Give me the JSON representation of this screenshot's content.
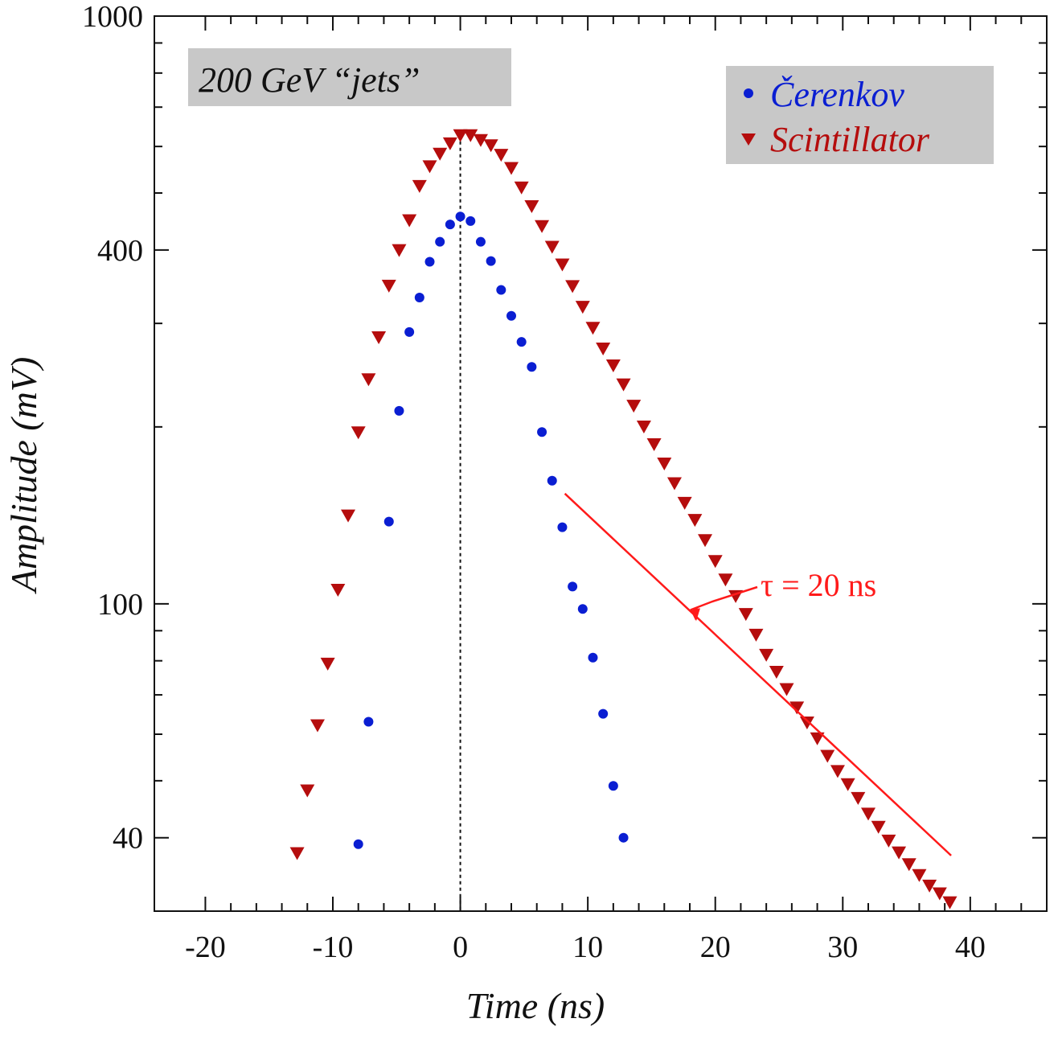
{
  "colors": {
    "cerenkov": "#0a1ed2",
    "scintillator": "#b50d0d",
    "annotation": "#ff1a1a",
    "title_box": "#c8c8c8"
  },
  "chart_data": {
    "type": "scatter",
    "title": "200 GeV “jets”",
    "xlabel": "Time (ns)",
    "ylabel": "Amplitude (mV)",
    "x_scale": "linear",
    "y_scale": "log",
    "xlim": [
      -24,
      46
    ],
    "ylim": [
      30,
      1000
    ],
    "x_ticks": [
      -20,
      -10,
      0,
      10,
      20,
      30,
      40
    ],
    "x_tick_labels": [
      "-20",
      "-10",
      "0",
      "10",
      "20",
      "30",
      "40"
    ],
    "y_ticks": [
      40,
      100,
      400,
      1000
    ],
    "y_tick_labels": [
      "40",
      "100",
      "400",
      "1000"
    ],
    "legend": {
      "position": "top-right",
      "entries": [
        "Čerenkov",
        "Scintillator"
      ]
    },
    "reference_line": {
      "x": 0,
      "style": "dotted"
    },
    "annotation": {
      "text": "τ = 20 ns",
      "line": {
        "x": [
          8.2,
          38.5
        ],
        "y": [
          154,
          37.3
        ]
      },
      "arrow_to": {
        "x": 18.5,
        "y": 94
      }
    },
    "series": [
      {
        "name": "Čerenkov",
        "marker": "circle",
        "x": [
          -8,
          -7.2,
          -5.6,
          -4.8,
          -4.0,
          -3.2,
          -2.4,
          -1.6,
          -0.8,
          0,
          0.8,
          1.6,
          2.4,
          3.2,
          4.0,
          4.8,
          5.6,
          6.4,
          7.2,
          8.0,
          8.8,
          9.6,
          10.4,
          11.2,
          12.0,
          12.8
        ],
        "y": [
          39,
          63,
          138,
          213,
          290,
          332,
          382,
          413,
          442,
          456,
          448,
          413,
          383,
          342,
          309,
          279,
          253,
          196,
          162,
          135,
          107,
          98,
          81,
          65,
          49,
          40
        ]
      },
      {
        "name": "Scintillator",
        "marker": "triangle-down",
        "x": [
          -12.8,
          -12.0,
          -11.2,
          -10.4,
          -9.6,
          -8.8,
          -8.0,
          -7.2,
          -6.4,
          -5.6,
          -4.8,
          -4.0,
          -3.2,
          -2.4,
          -1.6,
          -0.8,
          0,
          0.8,
          1.6,
          2.4,
          3.2,
          4.0,
          4.8,
          5.6,
          6.4,
          7.2,
          8.0,
          8.8,
          9.6,
          10.4,
          11.2,
          12.0,
          12.8,
          13.6,
          14.4,
          15.2,
          16.0,
          16.8,
          17.6,
          18.4,
          19.2,
          20.0,
          20.8,
          21.6,
          22.4,
          23.2,
          24.0,
          24.8,
          25.6,
          26.4,
          27.2,
          28.0,
          28.8,
          29.6,
          30.4,
          31.2,
          32.0,
          32.8,
          33.6,
          34.4,
          35.2,
          36.0,
          36.8,
          37.6,
          38.4
        ],
        "y": [
          37.7,
          48.2,
          62.2,
          79.2,
          105.8,
          141.5,
          196.0,
          241.3,
          284.5,
          348.2,
          400.2,
          450.0,
          514.5,
          555.8,
          584.0,
          608.1,
          627.9,
          627.9,
          616.0,
          603.6,
          581.5,
          552.2,
          511.5,
          475.4,
          439.8,
          405.5,
          378.3,
          347.6,
          320.5,
          295.2,
          272.2,
          254.8,
          236.5,
          217.6,
          200.5,
          187.1,
          173.5,
          160.6,
          148.7,
          139.1,
          128.5,
          118.4,
          110.1,
          103.2,
          96.2,
          88.7,
          82.0,
          76.7,
          71.7,
          66.7,
          62.9,
          59.1,
          55.2,
          52.0,
          49.4,
          46.8,
          44.0,
          41.8,
          39.6,
          37.8,
          36.1,
          34.6,
          33.2,
          32.2,
          31.1
        ]
      }
    ]
  }
}
